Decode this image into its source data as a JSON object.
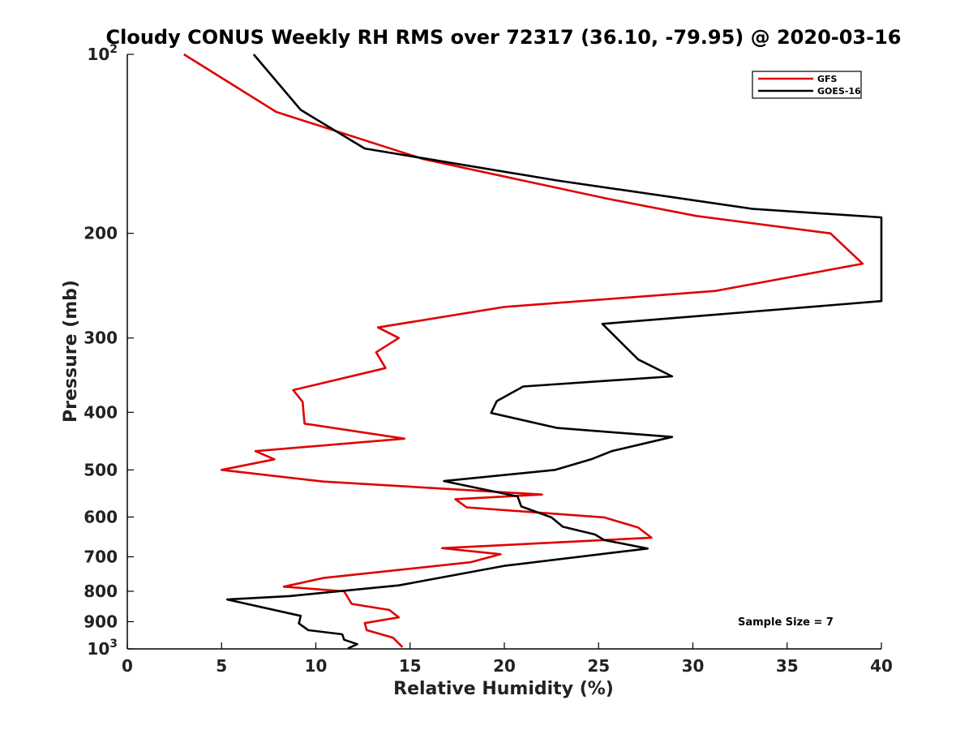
{
  "chart_data": {
    "type": "line",
    "title": "Cloudy CONUS Weekly RH RMS over 72317 (36.10, -79.95) @ 2020-03-16",
    "xlabel": "Relative Humidity (%)",
    "ylabel": "Pressure (mb)",
    "xlim": [
      0,
      40
    ],
    "ylim": [
      100,
      1000
    ],
    "y_scale": "log",
    "y_reversed": true,
    "grid": false,
    "legend_position": "top-right",
    "x_ticks": [
      "0",
      "5",
      "10",
      "15",
      "20",
      "25",
      "30",
      "35",
      "40"
    ],
    "y_ticks": [
      {
        "value": 100,
        "base": "10",
        "exp": "2"
      },
      {
        "value": 200,
        "label": "200"
      },
      {
        "value": 300,
        "label": "300"
      },
      {
        "value": 400,
        "label": "400"
      },
      {
        "value": 500,
        "label": "500"
      },
      {
        "value": 600,
        "label": "600"
      },
      {
        "value": 700,
        "label": "700"
      },
      {
        "value": 800,
        "label": "800"
      },
      {
        "value": 900,
        "label": "900"
      },
      {
        "value": 1000,
        "base": "10",
        "exp": "3"
      }
    ],
    "series": [
      {
        "name": "GFS",
        "color": "#e00000",
        "points": [
          [
            3.0,
            100
          ],
          [
            7.9,
            125
          ],
          [
            15.7,
            150
          ],
          [
            25.5,
            175
          ],
          [
            30.2,
            187
          ],
          [
            37.3,
            200
          ],
          [
            39.0,
            225
          ],
          [
            31.2,
            250
          ],
          [
            20.0,
            266
          ],
          [
            13.3,
            288
          ],
          [
            14.4,
            300
          ],
          [
            13.2,
            317
          ],
          [
            13.7,
            337
          ],
          [
            8.8,
            367
          ],
          [
            9.3,
            384
          ],
          [
            9.4,
            418
          ],
          [
            14.7,
            443
          ],
          [
            6.8,
            465
          ],
          [
            7.8,
            480
          ],
          [
            5.0,
            500
          ],
          [
            10.4,
            523
          ],
          [
            22.0,
            550
          ],
          [
            17.4,
            560
          ],
          [
            18.0,
            578
          ],
          [
            25.3,
            601
          ],
          [
            27.1,
            625
          ],
          [
            27.8,
            650
          ],
          [
            16.7,
            677
          ],
          [
            19.8,
            693
          ],
          [
            18.2,
            715
          ],
          [
            10.4,
            760
          ],
          [
            8.3,
            786
          ],
          [
            11.5,
            800
          ],
          [
            11.9,
            840
          ],
          [
            13.9,
            860
          ],
          [
            14.4,
            885
          ],
          [
            12.6,
            905
          ],
          [
            12.7,
            930
          ],
          [
            14.1,
            958
          ],
          [
            14.6,
            993
          ]
        ]
      },
      {
        "name": "GOES-16",
        "color": "#000000",
        "points": [
          [
            6.7,
            100
          ],
          [
            9.2,
            124
          ],
          [
            12.6,
            144
          ],
          [
            22.8,
            163
          ],
          [
            33.2,
            182
          ],
          [
            40.0,
            188
          ],
          [
            40.0,
            260
          ],
          [
            25.2,
            284
          ],
          [
            27.1,
            326
          ],
          [
            28.9,
            348
          ],
          [
            21.0,
            362
          ],
          [
            19.6,
            383
          ],
          [
            19.3,
            401
          ],
          [
            22.8,
            425
          ],
          [
            28.9,
            440
          ],
          [
            25.7,
            465
          ],
          [
            24.6,
            480
          ],
          [
            22.7,
            500
          ],
          [
            16.8,
            522
          ],
          [
            20.7,
            554
          ],
          [
            20.9,
            576
          ],
          [
            22.5,
            601
          ],
          [
            23.1,
            623
          ],
          [
            24.8,
            642
          ],
          [
            25.3,
            656
          ],
          [
            27.6,
            678
          ],
          [
            20.0,
            725
          ],
          [
            14.4,
            782
          ],
          [
            8.6,
            815
          ],
          [
            5.3,
            826
          ],
          [
            9.2,
            880
          ],
          [
            9.1,
            906
          ],
          [
            9.6,
            930
          ],
          [
            11.4,
            945
          ],
          [
            11.5,
            965
          ],
          [
            12.2,
            982
          ],
          [
            11.7,
            998
          ]
        ]
      }
    ],
    "legend": [
      "GFS",
      "GOES-16"
    ],
    "annotation": "Sample Size = 7"
  }
}
